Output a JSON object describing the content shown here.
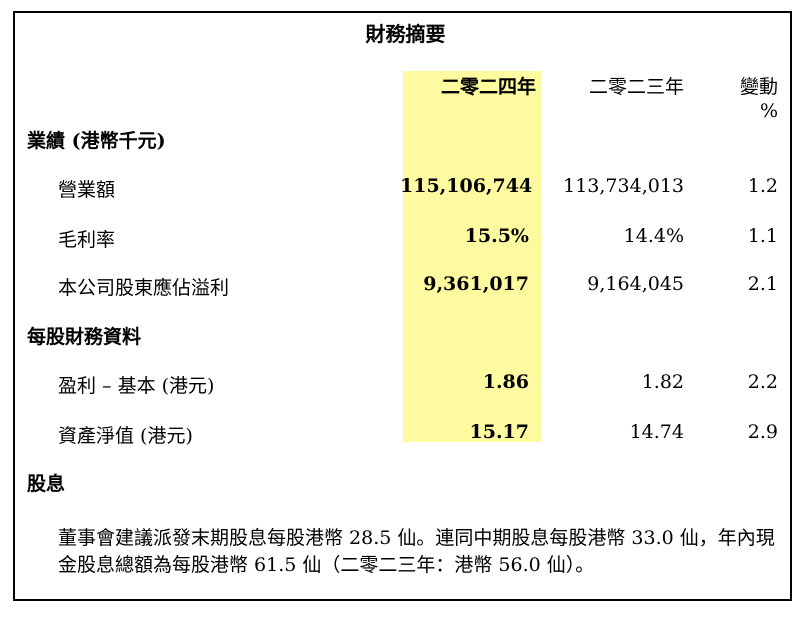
{
  "title": "財務摘要",
  "columns": {
    "current_year": "二零二四年",
    "prior_year": "二零二三年",
    "change_line1": "變動",
    "change_line2": "%"
  },
  "sections": [
    {
      "heading": "業績 (港幣千元)",
      "rows": [
        {
          "label": "營業額",
          "current": "115,106,744",
          "prior": "113,734,013",
          "change": "1.2"
        },
        {
          "label": "毛利率",
          "current": "15.5%",
          "prior": "14.4%",
          "change": "1.1"
        },
        {
          "label": "本公司股東應佔溢利",
          "current": "9,361,017",
          "prior": "9,164,045",
          "change": "2.1"
        }
      ]
    },
    {
      "heading": "每股財務資料",
      "rows": [
        {
          "label": "盈利 – 基本 (港元)",
          "current": "1.86",
          "prior": "1.82",
          "change": "2.2"
        },
        {
          "label": "資產淨值 (港元)",
          "current": "15.17",
          "prior": "14.74",
          "change": "2.9"
        }
      ]
    },
    {
      "heading": "股息",
      "paragraph_line1": "董事會建議派發末期股息每股港幣 28.5 仙。連同中期股息每股港幣 33.0 仙，年內現",
      "paragraph_line2": "金股息總額為每股港幣 61.5 仙（二零二三年：港幣 56.0 仙）。"
    }
  ],
  "colors": {
    "highlight": "#fdfa9f",
    "border": "#000000",
    "text": "#000000"
  }
}
